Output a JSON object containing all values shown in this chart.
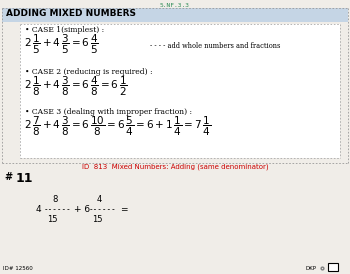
{
  "bg_color": "#f0ede8",
  "outer_box_color": "#999999",
  "title_text": "ADDING MIXED NUMBERS",
  "title_bg": "#c5d5e5",
  "standard_label": "5.NF.3.3",
  "standard_color": "#2e8b57",
  "inner_box_color": "#aaaaaa",
  "case1_header": "• CASE 1(simplest) :",
  "case2_header": "• CASE 2 (reducing is required) :",
  "case3_header": "• CASE 3 (dealing with improper fraction) :",
  "id_label": "ID  813  Mixed Numbers: Adding (same denominator)",
  "id_color": "#cc0000",
  "footer_id": "ID# 12560",
  "footer_right": "DKP"
}
